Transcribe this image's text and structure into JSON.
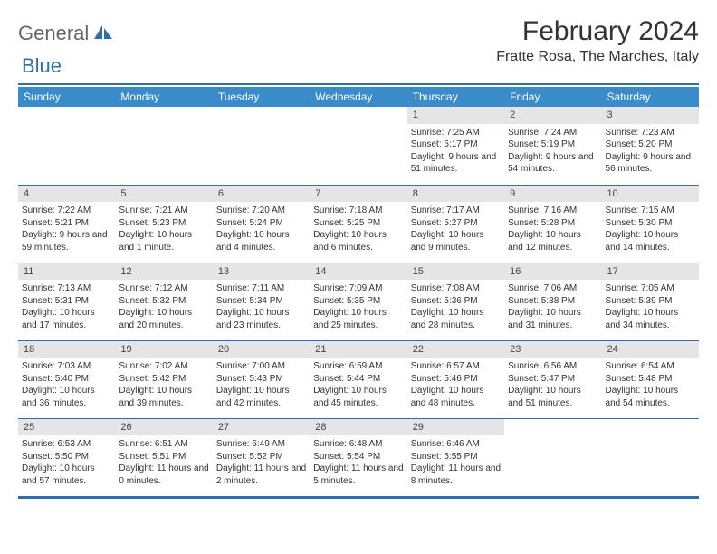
{
  "logo": {
    "general": "General",
    "blue": "Blue"
  },
  "title": "February 2024",
  "location": "Fratte Rosa, The Marches, Italy",
  "colors": {
    "accent": "#2f6fa8",
    "header_bg": "#3a8bc9",
    "daynum_bg": "#e5e5e5",
    "text": "#333333"
  },
  "weekdays": [
    "Sunday",
    "Monday",
    "Tuesday",
    "Wednesday",
    "Thursday",
    "Friday",
    "Saturday"
  ],
  "calendar": {
    "first_weekday_index": 4,
    "num_days": 29
  },
  "days": {
    "1": {
      "sunrise": "7:25 AM",
      "sunset": "5:17 PM",
      "daylight": "9 hours and 51 minutes."
    },
    "2": {
      "sunrise": "7:24 AM",
      "sunset": "5:19 PM",
      "daylight": "9 hours and 54 minutes."
    },
    "3": {
      "sunrise": "7:23 AM",
      "sunset": "5:20 PM",
      "daylight": "9 hours and 56 minutes."
    },
    "4": {
      "sunrise": "7:22 AM",
      "sunset": "5:21 PM",
      "daylight": "9 hours and 59 minutes."
    },
    "5": {
      "sunrise": "7:21 AM",
      "sunset": "5:23 PM",
      "daylight": "10 hours and 1 minute."
    },
    "6": {
      "sunrise": "7:20 AM",
      "sunset": "5:24 PM",
      "daylight": "10 hours and 4 minutes."
    },
    "7": {
      "sunrise": "7:18 AM",
      "sunset": "5:25 PM",
      "daylight": "10 hours and 6 minutes."
    },
    "8": {
      "sunrise": "7:17 AM",
      "sunset": "5:27 PM",
      "daylight": "10 hours and 9 minutes."
    },
    "9": {
      "sunrise": "7:16 AM",
      "sunset": "5:28 PM",
      "daylight": "10 hours and 12 minutes."
    },
    "10": {
      "sunrise": "7:15 AM",
      "sunset": "5:30 PM",
      "daylight": "10 hours and 14 minutes."
    },
    "11": {
      "sunrise": "7:13 AM",
      "sunset": "5:31 PM",
      "daylight": "10 hours and 17 minutes."
    },
    "12": {
      "sunrise": "7:12 AM",
      "sunset": "5:32 PM",
      "daylight": "10 hours and 20 minutes."
    },
    "13": {
      "sunrise": "7:11 AM",
      "sunset": "5:34 PM",
      "daylight": "10 hours and 23 minutes."
    },
    "14": {
      "sunrise": "7:09 AM",
      "sunset": "5:35 PM",
      "daylight": "10 hours and 25 minutes."
    },
    "15": {
      "sunrise": "7:08 AM",
      "sunset": "5:36 PM",
      "daylight": "10 hours and 28 minutes."
    },
    "16": {
      "sunrise": "7:06 AM",
      "sunset": "5:38 PM",
      "daylight": "10 hours and 31 minutes."
    },
    "17": {
      "sunrise": "7:05 AM",
      "sunset": "5:39 PM",
      "daylight": "10 hours and 34 minutes."
    },
    "18": {
      "sunrise": "7:03 AM",
      "sunset": "5:40 PM",
      "daylight": "10 hours and 36 minutes."
    },
    "19": {
      "sunrise": "7:02 AM",
      "sunset": "5:42 PM",
      "daylight": "10 hours and 39 minutes."
    },
    "20": {
      "sunrise": "7:00 AM",
      "sunset": "5:43 PM",
      "daylight": "10 hours and 42 minutes."
    },
    "21": {
      "sunrise": "6:59 AM",
      "sunset": "5:44 PM",
      "daylight": "10 hours and 45 minutes."
    },
    "22": {
      "sunrise": "6:57 AM",
      "sunset": "5:46 PM",
      "daylight": "10 hours and 48 minutes."
    },
    "23": {
      "sunrise": "6:56 AM",
      "sunset": "5:47 PM",
      "daylight": "10 hours and 51 minutes."
    },
    "24": {
      "sunrise": "6:54 AM",
      "sunset": "5:48 PM",
      "daylight": "10 hours and 54 minutes."
    },
    "25": {
      "sunrise": "6:53 AM",
      "sunset": "5:50 PM",
      "daylight": "10 hours and 57 minutes."
    },
    "26": {
      "sunrise": "6:51 AM",
      "sunset": "5:51 PM",
      "daylight": "11 hours and 0 minutes."
    },
    "27": {
      "sunrise": "6:49 AM",
      "sunset": "5:52 PM",
      "daylight": "11 hours and 2 minutes."
    },
    "28": {
      "sunrise": "6:48 AM",
      "sunset": "5:54 PM",
      "daylight": "11 hours and 5 minutes."
    },
    "29": {
      "sunrise": "6:46 AM",
      "sunset": "5:55 PM",
      "daylight": "11 hours and 8 minutes."
    }
  },
  "labels": {
    "sunrise": "Sunrise:",
    "sunset": "Sunset:",
    "daylight": "Daylight:"
  }
}
